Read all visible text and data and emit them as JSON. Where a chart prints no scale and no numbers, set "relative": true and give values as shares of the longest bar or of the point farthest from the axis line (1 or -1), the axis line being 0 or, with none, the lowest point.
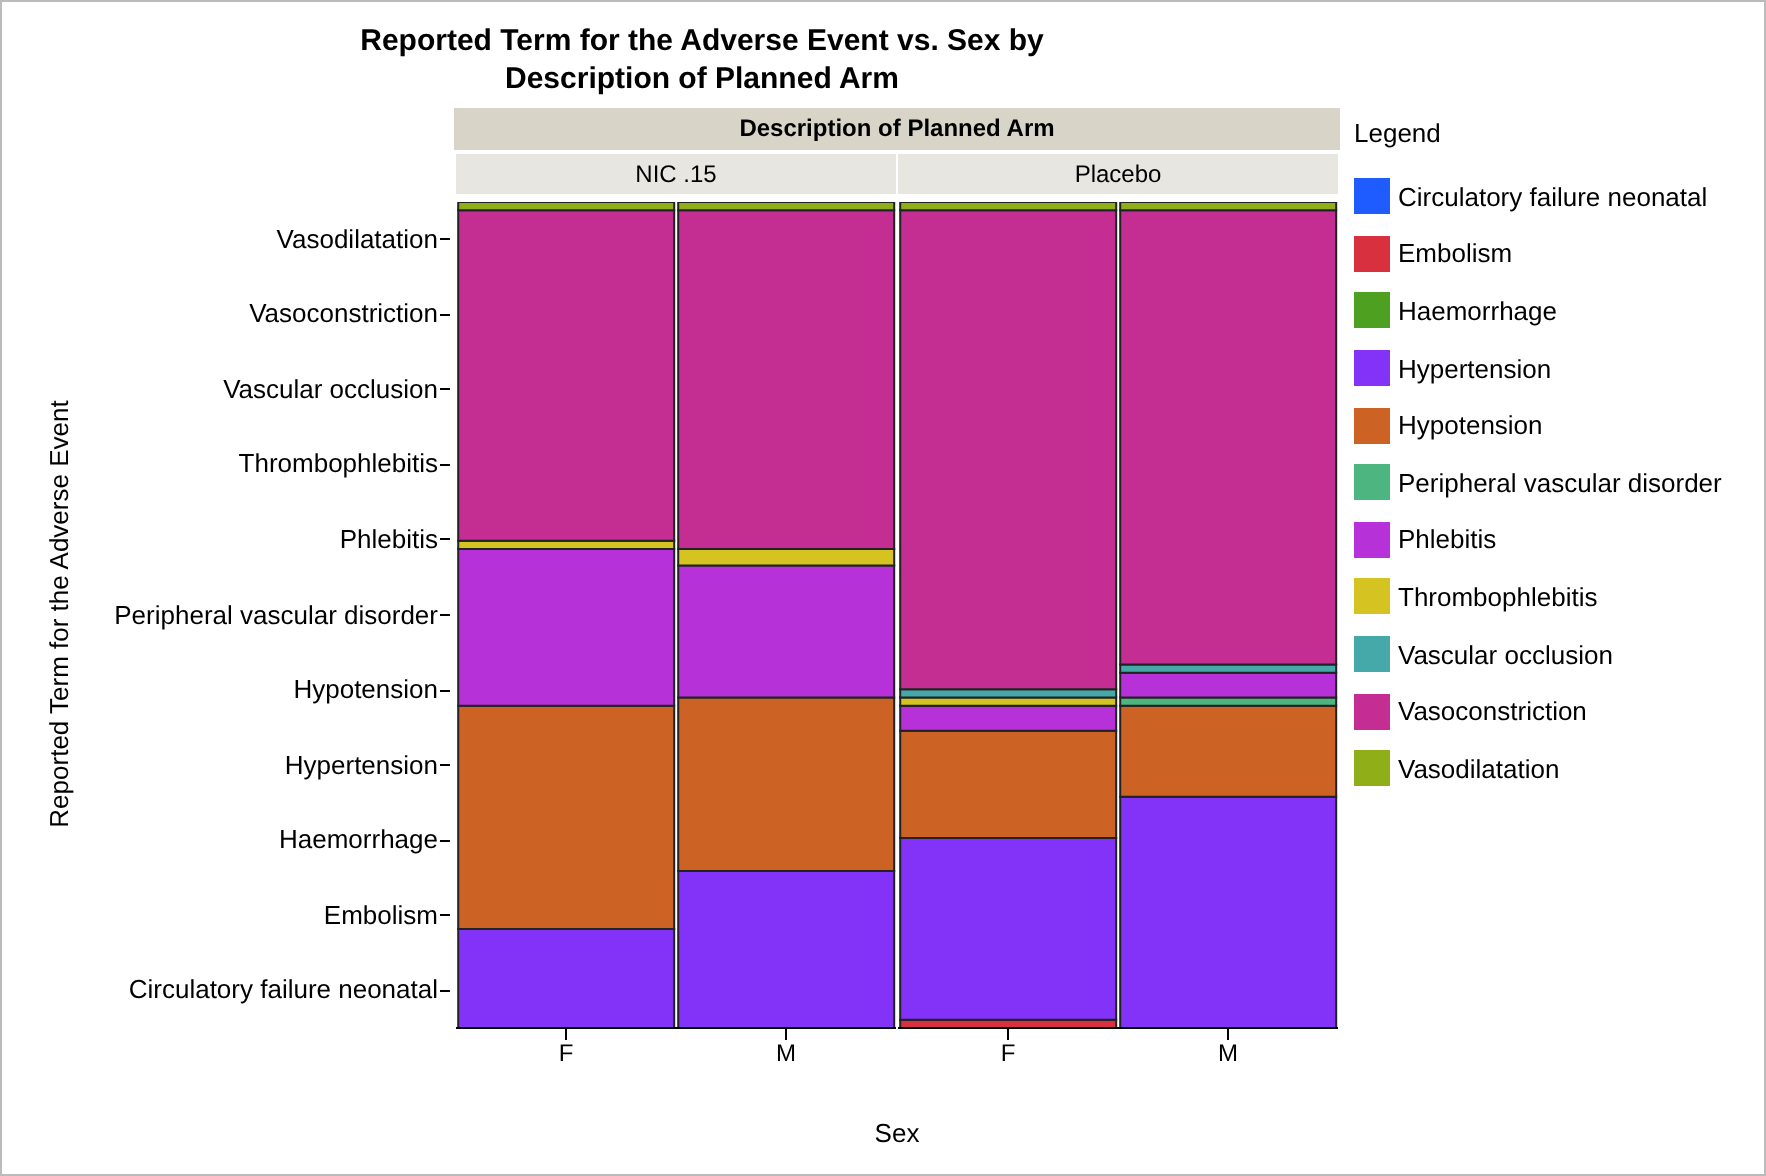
{
  "chart_data": [
    {
      "type": "bar",
      "title": "Reported Term for the Adverse Event vs. Sex by Description of Planned Arm",
      "annotations": [
        "Description of Planned Arm",
        "Vasodilatation",
        "Vasoconstriction",
        "Vascular occlusion",
        "Thrombophlebitis",
        "Phlebitis",
        "Peripheral vascular disorder",
        "Hypotension",
        "Hypertension",
        "Haemorrhage",
        "Embolism",
        "Circulatory failure neonatal"
      ],
      "subtitle": "NIC .15",
      "xlabel": "Sex",
      "ylabel": "Reported Term for the Adverse Event",
      "stacked": true,
      "relative": true,
      "categories": [
        "F",
        "M"
      ],
      "series": [
        {
          "color": "#1f5cff",
          "values": [
            0,
            0
          ]
        },
        {
          "color": "#d8303f",
          "values": [
            0,
            0
          ]
        },
        {
          "color": "#4ea021",
          "values": [
            0,
            0
          ]
        },
        {
          "color": "#8333f8",
          "values": [
            0.12,
            0.19
          ]
        },
        {
          "color": "#cc6325",
          "values": [
            0.27,
            0.21
          ]
        },
        {
          "color": "#4db57f",
          "values": [
            0,
            0
          ]
        },
        {
          "color": "#b632d8",
          "values": [
            0.19,
            0.16
          ]
        },
        {
          "color": "#d4c320",
          "values": [
            0.01,
            0.02
          ]
        },
        {
          "color": "#45a9a9",
          "values": [
            0,
            0
          ]
        },
        {
          "color": "#c42e93",
          "values": [
            0.4,
            0.41
          ]
        },
        {
          "color": "#8fae18",
          "values": [
            0.01,
            0.01
          ]
        }
      ]
    },
    {
      "type": "bar",
      "subtitle": "Placebo",
      "stacked": true,
      "relative": true,
      "categories": [
        "F",
        "M"
      ],
      "legend": "right",
      "legend_title": "Legend",
      "series": [
        {
          "name": "Circulatory failure neonatal",
          "color": "#1f5cff",
          "values": [
            0,
            0
          ]
        },
        {
          "name": "Embolism",
          "color": "#d8303f",
          "values": [
            0.01,
            0
          ]
        },
        {
          "name": "Haemorrhage",
          "color": "#4ea021",
          "values": [
            0,
            0
          ]
        },
        {
          "name": "Hypertension",
          "color": "#8333f8",
          "values": [
            0.22,
            0.28
          ]
        },
        {
          "name": "Hypotension",
          "color": "#cc6325",
          "values": [
            0.13,
            0.11
          ]
        },
        {
          "name": "Peripheral vascular disorder",
          "color": "#4db57f",
          "values": [
            0,
            0.01
          ]
        },
        {
          "name": "Phlebitis",
          "color": "#b632d8",
          "values": [
            0.03,
            0.03
          ]
        },
        {
          "name": "Thrombophlebitis",
          "color": "#d4c320",
          "values": [
            0.01,
            0
          ]
        },
        {
          "name": "Vascular occlusion",
          "color": "#45a9a9",
          "values": [
            0.01,
            0.01
          ]
        },
        {
          "name": "Vasoconstriction",
          "color": "#c42e93",
          "values": [
            0.58,
            0.55
          ]
        },
        {
          "name": "Vasodilatation",
          "color": "#8fae18",
          "values": [
            0.01,
            0.01
          ]
        }
      ]
    }
  ]
}
